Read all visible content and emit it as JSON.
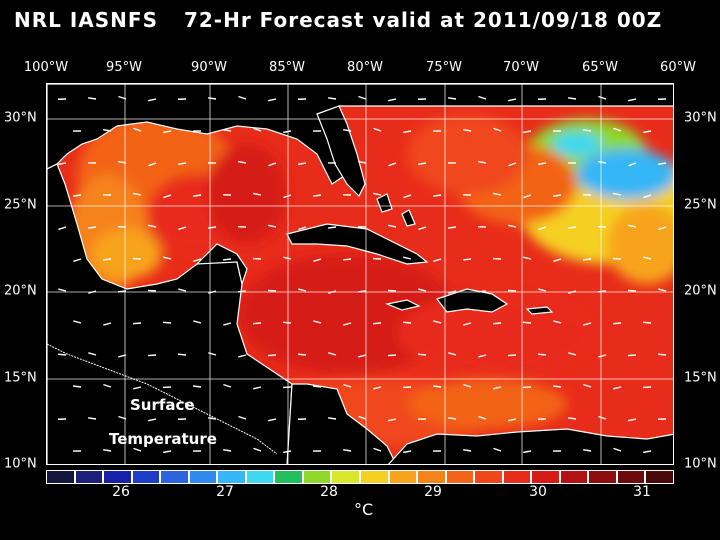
{
  "title": {
    "left": "NRL IASNFS",
    "right": "72-Hr Forecast valid at 2011/09/18 00Z"
  },
  "axes": {
    "lon_labels": [
      "100°W",
      "95°W",
      "90°W",
      "85°W",
      "80°W",
      "75°W",
      "70°W",
      "65°W",
      "60°W"
    ],
    "lat_labels": [
      "30°N",
      "25°N",
      "20°N",
      "15°N",
      "10°N"
    ]
  },
  "map_label": {
    "line1": "Surface",
    "line2": "Temperature"
  },
  "colorbar": {
    "colors": [
      "#15163e",
      "#1e1f78",
      "#1620a8",
      "#1f3ec8",
      "#2c64e0",
      "#2f8af0",
      "#36b6f6",
      "#3ed8f0",
      "#22c05c",
      "#8ed82a",
      "#d8e82c",
      "#f5d021",
      "#f7a41c",
      "#f6821a",
      "#f36318",
      "#f0461a",
      "#e82c1a",
      "#d61a16",
      "#b41212",
      "#8e0e10",
      "#6c0a0c",
      "#4a0808"
    ],
    "tick_labels": [
      "26",
      "27",
      "28",
      "29",
      "30",
      "31"
    ],
    "unit": "°C"
  },
  "icons": [
    "wind-vector-icon"
  ]
}
